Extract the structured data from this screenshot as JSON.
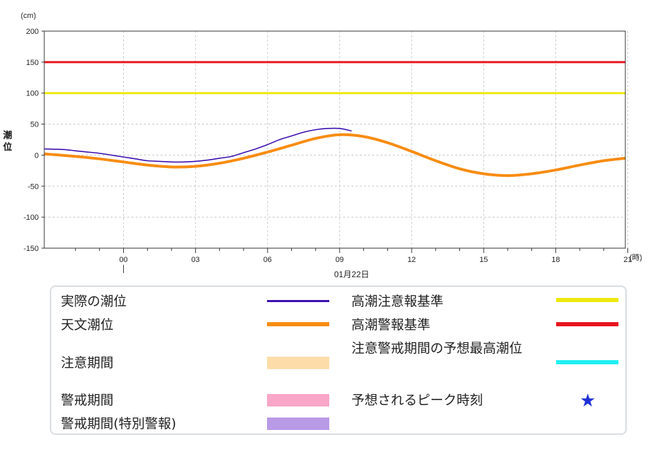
{
  "chart_data": {
    "type": "line",
    "unit_label": "(cm)",
    "ylabel": "潮位",
    "xlabel": "01月22日",
    "x_unit_label": "(時)",
    "ylim": [
      -150,
      200
    ],
    "yticks": [
      200,
      150,
      100,
      50,
      0,
      -50,
      -100,
      -150
    ],
    "ytick_labels": [
      "200",
      "150",
      "100",
      "50",
      "0",
      "-50",
      "-100",
      "-150"
    ],
    "xlim_hours": [
      -3.3,
      20.9
    ],
    "xticks_hours": [
      0,
      3,
      6,
      9,
      12,
      15,
      18,
      21
    ],
    "xtick_labels": [
      "00",
      "03",
      "06",
      "09",
      "12",
      "15",
      "18",
      "21"
    ],
    "grid": true,
    "thresholds": [
      {
        "name": "高潮警報基準",
        "value": 150,
        "color": "#e8141c"
      },
      {
        "name": "高潮注意報基準",
        "value": 100,
        "color": "#ede80c"
      }
    ],
    "series": [
      {
        "name": "天文潮位",
        "color": "#f88c12",
        "x": [
          -3.3,
          -2,
          -1,
          0,
          1,
          2,
          3,
          4,
          5,
          6,
          7,
          8,
          9,
          10,
          11,
          12,
          13,
          14,
          15,
          16,
          17,
          18,
          19,
          20,
          20.9
        ],
        "y": [
          2,
          -2,
          -6,
          -11,
          -16,
          -19,
          -18,
          -13,
          -5,
          5,
          16,
          27,
          33,
          30,
          20,
          6,
          -9,
          -22,
          -30,
          -33,
          -30,
          -24,
          -16,
          -9,
          -5
        ]
      },
      {
        "name": "実際の潮位",
        "color": "#3b0fb0",
        "x": [
          -3.3,
          -2.5,
          -2,
          -1.5,
          -1,
          -0.5,
          0,
          0.5,
          1,
          1.5,
          2,
          2.5,
          3,
          3.5,
          4,
          4.5,
          5,
          5.5,
          6,
          6.5,
          7,
          7.5,
          8,
          8.5,
          9,
          9.5
        ],
        "y": [
          10,
          9,
          7,
          5,
          3,
          0,
          -3,
          -6,
          -9,
          -10,
          -11,
          -11,
          -10,
          -8,
          -5,
          -2,
          4,
          10,
          17,
          25,
          31,
          37,
          41,
          43,
          43,
          39
        ]
      }
    ]
  },
  "legend": {
    "items": [
      {
        "label": "実際の潮位",
        "kind": "line-thin",
        "color": "#3b0fb0"
      },
      {
        "label": "天文潮位",
        "kind": "line-thick",
        "color": "#f88c12"
      },
      {
        "label": "注意期間",
        "kind": "band",
        "color": "#fddcaa"
      },
      {
        "label": "警戒期間",
        "kind": "band",
        "color": "#f9a6c8"
      },
      {
        "label": "警戒期間(特別警報)",
        "kind": "band",
        "color": "#b99ae6"
      },
      {
        "label": "高潮注意報基準",
        "kind": "line-thick",
        "color": "#ede80c"
      },
      {
        "label": "高潮警報基準",
        "kind": "line-thick",
        "color": "#e8141c"
      },
      {
        "label": "注意警戒期間の予想最高潮位",
        "kind": "line-thick",
        "color": "#1ff0f4"
      },
      {
        "label": "予想されるピーク時刻",
        "kind": "star",
        "color": "#1f2fd6",
        "icon": "star-icon"
      }
    ]
  }
}
